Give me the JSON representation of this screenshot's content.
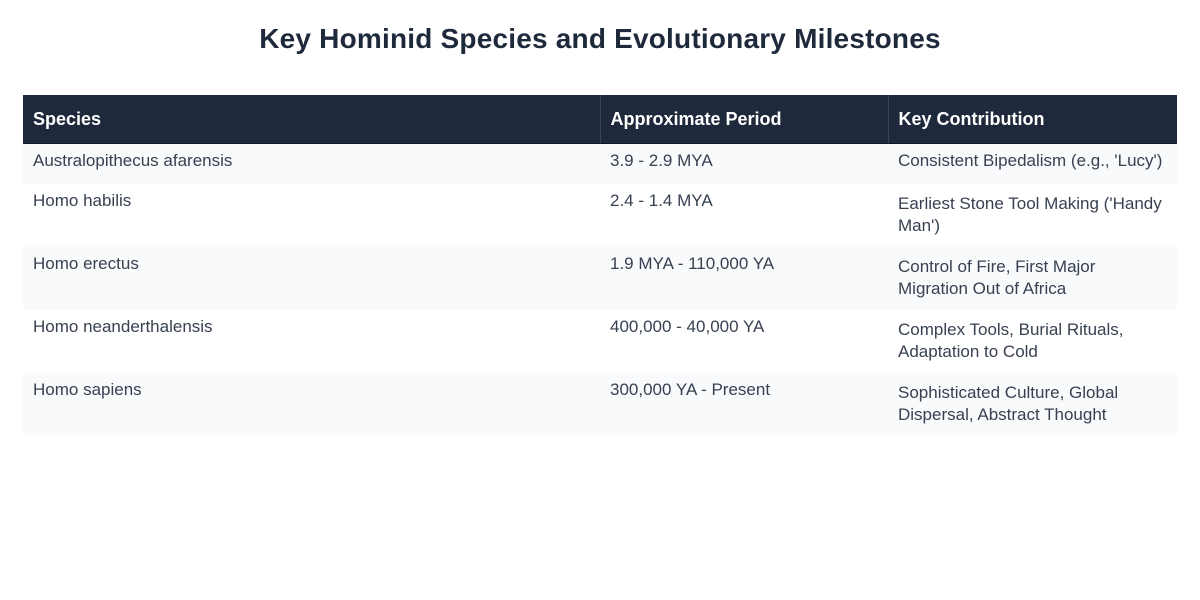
{
  "title": "Key Hominid Species and Evolutionary Milestones",
  "table": {
    "headers": [
      "Species",
      "Approximate Period",
      "Key Contribution"
    ],
    "rows": [
      {
        "species": "Australopithecus afarensis",
        "period": "3.9 - 2.9 MYA",
        "contribution": "Consistent Bipedalism (e.g., 'Lucy')"
      },
      {
        "species": "Homo habilis",
        "period": "2.4 - 1.4 MYA",
        "contribution": "Earliest Stone Tool Making ('Handy Man')"
      },
      {
        "species": "Homo erectus",
        "period": "1.9 MYA - 110,000 YA",
        "contribution": "Control of Fire, First Major Migration Out of Africa"
      },
      {
        "species": "Homo neanderthalensis",
        "period": "400,000 - 40,000 YA",
        "contribution": "Complex Tools, Burial Rituals, Adaptation to Cold"
      },
      {
        "species": "Homo sapiens",
        "period": "300,000 YA - Present",
        "contribution": "Sophisticated Culture, Global Dispersal, Abstract Thought"
      }
    ]
  },
  "colors": {
    "header_bg": "#1e293b",
    "row_alt_bg": "#f8fafc",
    "title_color": "#1e293b"
  }
}
